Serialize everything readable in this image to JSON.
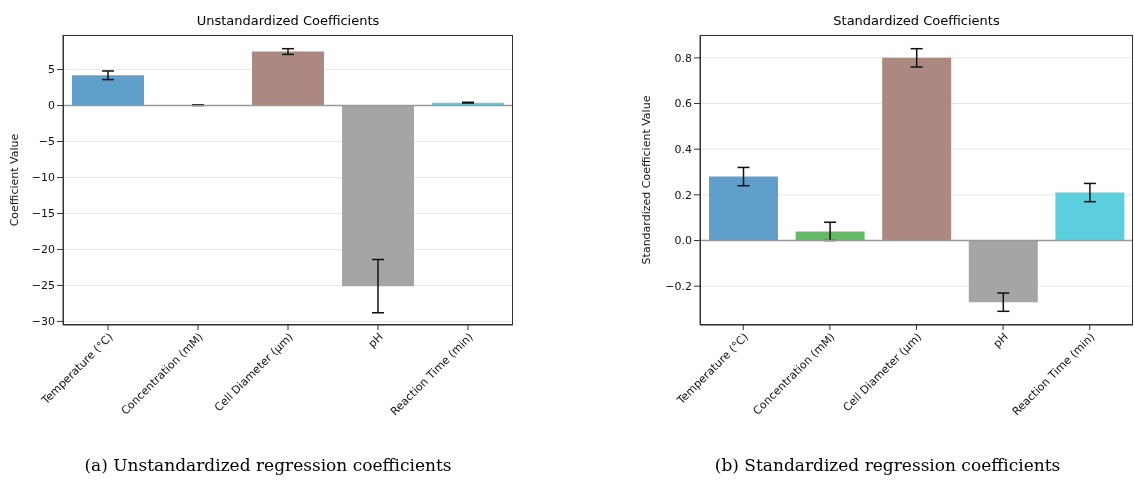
{
  "chart_data": [
    {
      "type": "bar",
      "title": "Unstandardized Coefficients",
      "ylabel": "Coefficient Value",
      "categories": [
        "Temperature (°C)",
        "Concentration (mM)",
        "Cell Diameter (μm)",
        "pH",
        "Reaction Time (min)"
      ],
      "values": [
        4.2,
        0.05,
        7.5,
        -25.1,
        0.4
      ],
      "errors": [
        0.6,
        0.05,
        0.4,
        3.7,
        0.05
      ],
      "colors": [
        "#5f9fca",
        "#67b96a",
        "#ad8880",
        "#a5a5a5",
        "#5ccfde"
      ],
      "ylim": [
        -30.5,
        9.8
      ],
      "yticks": [
        {
          "value": -30,
          "label": "−30"
        },
        {
          "value": -25,
          "label": "−25"
        },
        {
          "value": -20,
          "label": "−20"
        },
        {
          "value": -15,
          "label": "−15"
        },
        {
          "value": -10,
          "label": "−10"
        },
        {
          "value": -5,
          "label": "−5"
        },
        0,
        5
      ],
      "grid": "y",
      "ref_lines": [
        {
          "axis": "y",
          "value": 0,
          "color": "#999999"
        }
      ],
      "annotations": [
        "(a) Unstandardized regression coefficients"
      ]
    },
    {
      "type": "bar",
      "title": "Standardized Coefficients",
      "ylabel": "Standardized Coefficient Value",
      "categories": [
        "Temperature (°C)",
        "Concentration (mM)",
        "Cell Diameter (μm)",
        "pH",
        "Reaction Time (min)"
      ],
      "values": [
        0.28,
        0.04,
        0.8,
        -0.27,
        0.21
      ],
      "errors": [
        0.04,
        0.04,
        0.04,
        0.04,
        0.04
      ],
      "colors": [
        "#5f9fca",
        "#67b96a",
        "#ad8880",
        "#a5a5a5",
        "#5ccfde"
      ],
      "ylim": [
        -0.37,
        0.9
      ],
      "yticks": [
        {
          "value": -0.2,
          "label": "−0.2"
        },
        {
          "value": 0,
          "label": "0.0"
        },
        0.2,
        0.4,
        0.6,
        0.8
      ],
      "grid": "y",
      "ref_lines": [
        {
          "axis": "y",
          "value": 0,
          "color": "#999999"
        }
      ],
      "annotations": [
        "(b) Standardized regression coefficients"
      ]
    }
  ]
}
